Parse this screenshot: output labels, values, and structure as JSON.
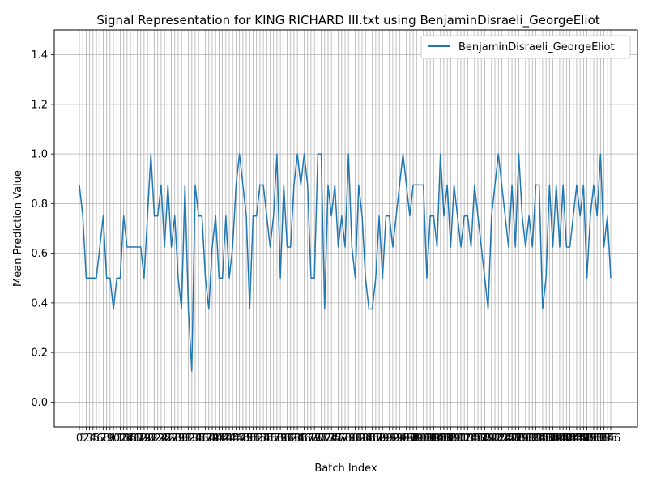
{
  "chart_data": {
    "type": "line",
    "title": "Signal Representation for KING RICHARD III.txt using BenjaminDisraeli_GeorgeEliot",
    "xlabel": "Batch Index",
    "ylabel": "Mean Prediction Value",
    "ylim": [
      -0.1,
      1.5
    ],
    "yticks": [
      0.0,
      0.2,
      0.4,
      0.6,
      0.8,
      1.0,
      1.2,
      1.4
    ],
    "grid": true,
    "legend_position": "top-right",
    "series": [
      {
        "name": "BenjaminDisraeli_GeorgeEliot",
        "color": "#1f77b4",
        "values": [
          0.875,
          0.75,
          0.5,
          0.5,
          0.5,
          0.5,
          0.625,
          0.75,
          0.5,
          0.5,
          0.375,
          0.5,
          0.5,
          0.75,
          0.625,
          0.625,
          0.625,
          0.625,
          0.625,
          0.5,
          0.75,
          1.0,
          0.75,
          0.75,
          0.875,
          0.625,
          0.875,
          0.625,
          0.75,
          0.5,
          0.375,
          0.875,
          0.375,
          0.125,
          0.875,
          0.75,
          0.75,
          0.5,
          0.375,
          0.625,
          0.75,
          0.5,
          0.5,
          0.75,
          0.5,
          0.625,
          0.875,
          1.0,
          0.875,
          0.75,
          0.375,
          0.75,
          0.75,
          0.875,
          0.875,
          0.75,
          0.625,
          0.75,
          1.0,
          0.5,
          0.875,
          0.625,
          0.625,
          0.875,
          1.0,
          0.875,
          1.0,
          0.875,
          0.5,
          0.5,
          1.0,
          1.0,
          0.375,
          0.875,
          0.75,
          0.875,
          0.625,
          0.75,
          0.625,
          1.0,
          0.625,
          0.5,
          0.875,
          0.75,
          0.5,
          0.375,
          0.375,
          0.5,
          0.75,
          0.5,
          0.75,
          0.75,
          0.625,
          0.75,
          0.875,
          1.0,
          0.875,
          0.75,
          0.875,
          0.875,
          0.875,
          0.875,
          0.5,
          0.75,
          0.75,
          0.625,
          1.0,
          0.75,
          0.875,
          0.625,
          0.875,
          0.75,
          0.625,
          0.75,
          0.75,
          0.625,
          0.875,
          0.75,
          0.625,
          0.5,
          0.375,
          0.75,
          0.875,
          1.0,
          0.875,
          0.75,
          0.625,
          0.875,
          0.625,
          1.0,
          0.75,
          0.625,
          0.75,
          0.625,
          0.875,
          0.875,
          0.375,
          0.5,
          0.875,
          0.625,
          0.875,
          0.625,
          0.875,
          0.625,
          0.625,
          0.75,
          0.875,
          0.75,
          0.875,
          0.5,
          0.75,
          0.875,
          0.75,
          1.0,
          0.625,
          0.75,
          0.5
        ]
      }
    ]
  }
}
